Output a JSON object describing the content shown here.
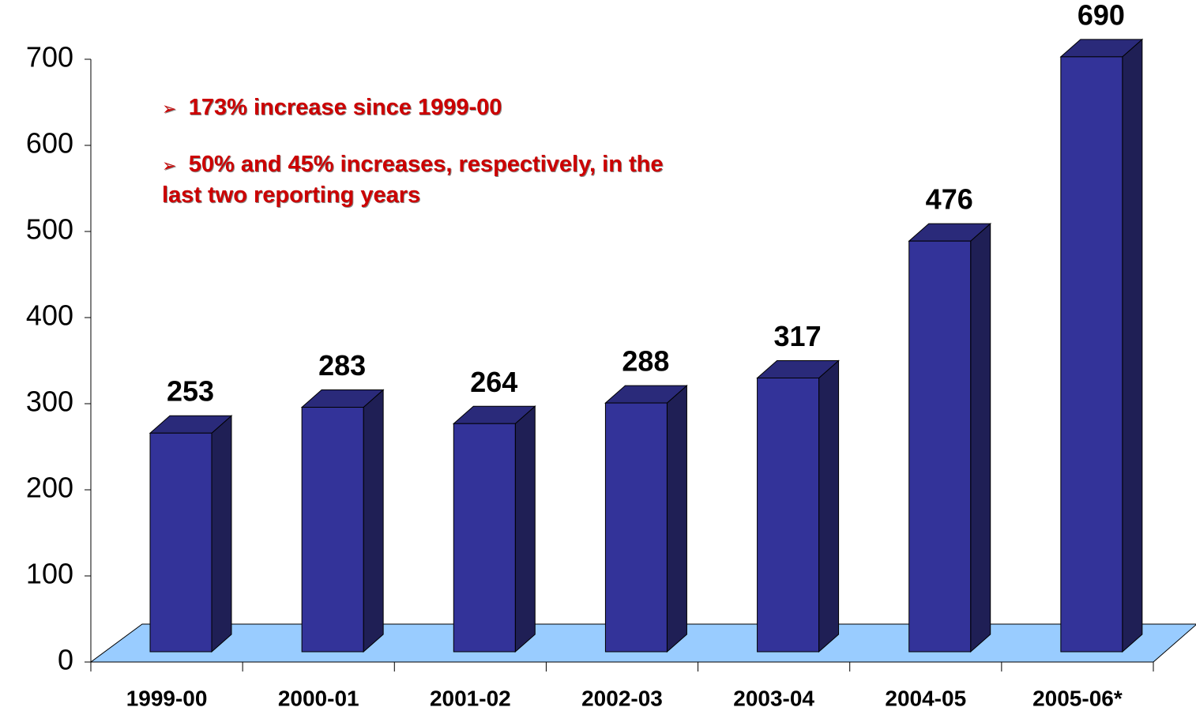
{
  "chart_data": {
    "type": "bar3d",
    "categories": [
      "1999-00",
      "2000-01",
      "2001-02",
      "2002-03",
      "2003-04",
      "2004-05",
      "2005-06*"
    ],
    "values": [
      253,
      283,
      264,
      288,
      317,
      476,
      690
    ],
    "color": "#333399",
    "ylim": [
      0,
      700
    ],
    "yticks": [
      0,
      100,
      200,
      300,
      400,
      500,
      600,
      700
    ],
    "annotations": [
      "173% increase since 1999-00",
      "50% and 45% increases, respectively, in the last two reporting years"
    ]
  }
}
